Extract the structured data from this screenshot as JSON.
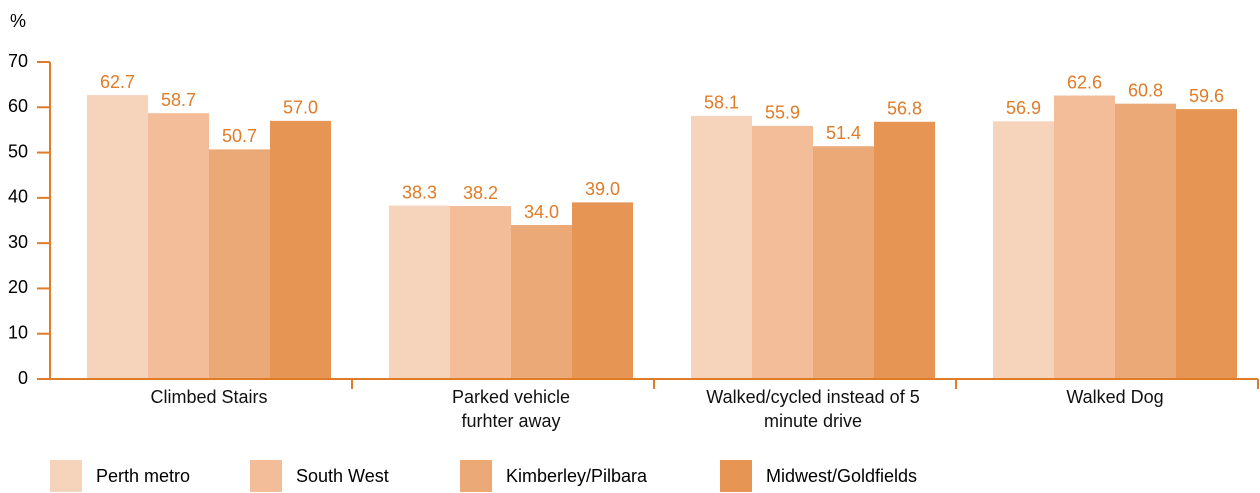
{
  "chart_data": {
    "type": "bar",
    "ylabel": "%",
    "categories": [
      "Climbed Stairs",
      "Parked vehicle\nfurhter away",
      "Walked/cycled instead of 5\nminute drive",
      "Walked Dog"
    ],
    "series": [
      {
        "name": "Perth metro",
        "color": "#f6d4bc",
        "values": [
          62.7,
          38.3,
          58.1,
          56.9
        ]
      },
      {
        "name": "South West",
        "color": "#f2bd98",
        "values": [
          58.7,
          38.2,
          55.9,
          62.6
        ]
      },
      {
        "name": "Kimberley/Pilbara",
        "color": "#eca978",
        "values": [
          50.7,
          34,
          51.4,
          60.8
        ],
        "value_labels": [
          "50.7",
          "34.0",
          "51.4",
          "60.8"
        ]
      },
      {
        "name": "Midwest/Goldfields",
        "color": "#e69554",
        "values": [
          57,
          39,
          56.8,
          59.6
        ],
        "value_labels": [
          "57.0",
          "39.0",
          "56.8",
          "59.6"
        ]
      }
    ],
    "ylim": [
      0,
      70
    ],
    "yticks": [
      0,
      10,
      20,
      30,
      40,
      50,
      60,
      70
    ],
    "axis_color": "#e07b28",
    "label_color": "#e07b28",
    "legend": "bottom"
  }
}
